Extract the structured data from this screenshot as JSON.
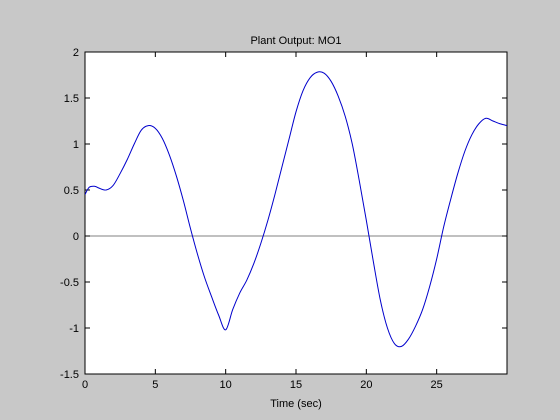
{
  "chart_data": {
    "type": "line",
    "title": "Plant Output:  MO1",
    "xlabel": "Time (sec)",
    "ylabel": "",
    "xlim": [
      0,
      30
    ],
    "ylim": [
      -1.5,
      2
    ],
    "xticks": [
      0,
      5,
      10,
      15,
      20,
      25
    ],
    "yticks": [
      -1.5,
      -1,
      -0.5,
      0,
      0.5,
      1,
      1.5,
      2
    ],
    "xtick_labels": [
      "0",
      "5",
      "10",
      "15",
      "20",
      "25"
    ],
    "ytick_labels": [
      "-1.5",
      "-1",
      "-0.5",
      "0",
      "0.5",
      "1",
      "1.5",
      "2"
    ],
    "reference_line": 0,
    "grid": false,
    "legend": "none",
    "series": [
      {
        "color": "#0000cc",
        "x": [
          0,
          0.3,
          0.7,
          1.0,
          1.5,
          2.0,
          2.5,
          3.0,
          3.5,
          4.0,
          4.5,
          5.0,
          5.5,
          6.0,
          6.5,
          7.0,
          7.5,
          8.0,
          8.5,
          9.0,
          9.5,
          10.0,
          10.5,
          11.0,
          11.5,
          12.0,
          12.5,
          13.0,
          13.5,
          14.0,
          14.5,
          15.0,
          15.5,
          16.0,
          16.5,
          17.0,
          17.5,
          18.0,
          18.5,
          19.0,
          19.5,
          20.0,
          20.5,
          21.0,
          21.5,
          22.0,
          22.5,
          23.0,
          23.5,
          24.0,
          24.5,
          25.0,
          25.5,
          26.0,
          26.5,
          27.0,
          27.5,
          28.0,
          28.5,
          29.0,
          29.5,
          30.0
        ],
        "y": [
          0.45,
          0.53,
          0.54,
          0.52,
          0.5,
          0.55,
          0.68,
          0.83,
          1.0,
          1.15,
          1.2,
          1.17,
          1.06,
          0.88,
          0.65,
          0.38,
          0.08,
          -0.2,
          -0.45,
          -0.66,
          -0.86,
          -1.02,
          -0.8,
          -0.62,
          -0.48,
          -0.3,
          -0.08,
          0.17,
          0.45,
          0.75,
          1.05,
          1.35,
          1.58,
          1.72,
          1.78,
          1.77,
          1.68,
          1.52,
          1.3,
          1.0,
          0.6,
          0.17,
          -0.28,
          -0.7,
          -1.0,
          -1.17,
          -1.2,
          -1.12,
          -0.98,
          -0.8,
          -0.55,
          -0.25,
          0.1,
          0.4,
          0.68,
          0.92,
          1.1,
          1.22,
          1.28,
          1.25,
          1.22,
          1.2
        ]
      }
    ]
  }
}
